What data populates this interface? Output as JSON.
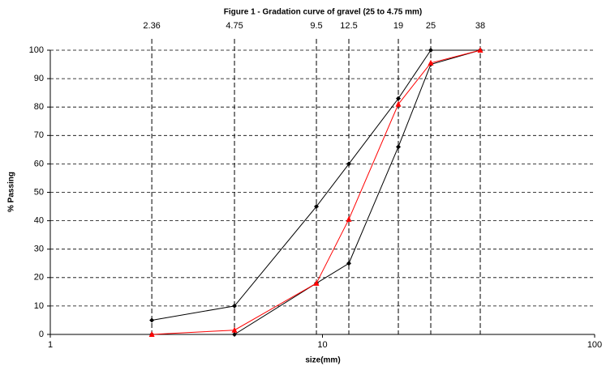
{
  "chart_data": {
    "type": "line",
    "title": "Figure 1 - Gradation curve of gravel (25 to 4.75 mm)",
    "x_label": "size(mm)",
    "y_label": "% Passing",
    "x": [
      2.36,
      4.75,
      9.5,
      12.5,
      19,
      25,
      38
    ],
    "series": [
      {
        "color": "#000000",
        "marker": "diamond",
        "values": [
          5,
          10,
          45,
          60,
          83,
          100,
          100
        ]
      },
      {
        "color": "#000000",
        "marker": "diamond",
        "values": [
          0,
          0,
          18,
          25,
          66,
          95,
          100
        ]
      },
      {
        "color": "#ff0000",
        "marker": "triangle",
        "values": [
          0,
          1.5,
          18,
          40.5,
          81,
          95.5,
          100
        ]
      }
    ],
    "reference_lines": [
      2.36,
      4.75,
      9.5,
      12.5,
      19,
      25,
      38
    ],
    "xscale": "log",
    "xlim": [
      1,
      100
    ],
    "xticks": [
      1,
      10,
      100
    ],
    "ylim": [
      0,
      100
    ],
    "yticks": [
      0,
      10,
      20,
      30,
      40,
      50,
      60,
      70,
      80,
      90,
      100
    ],
    "grid": true
  }
}
